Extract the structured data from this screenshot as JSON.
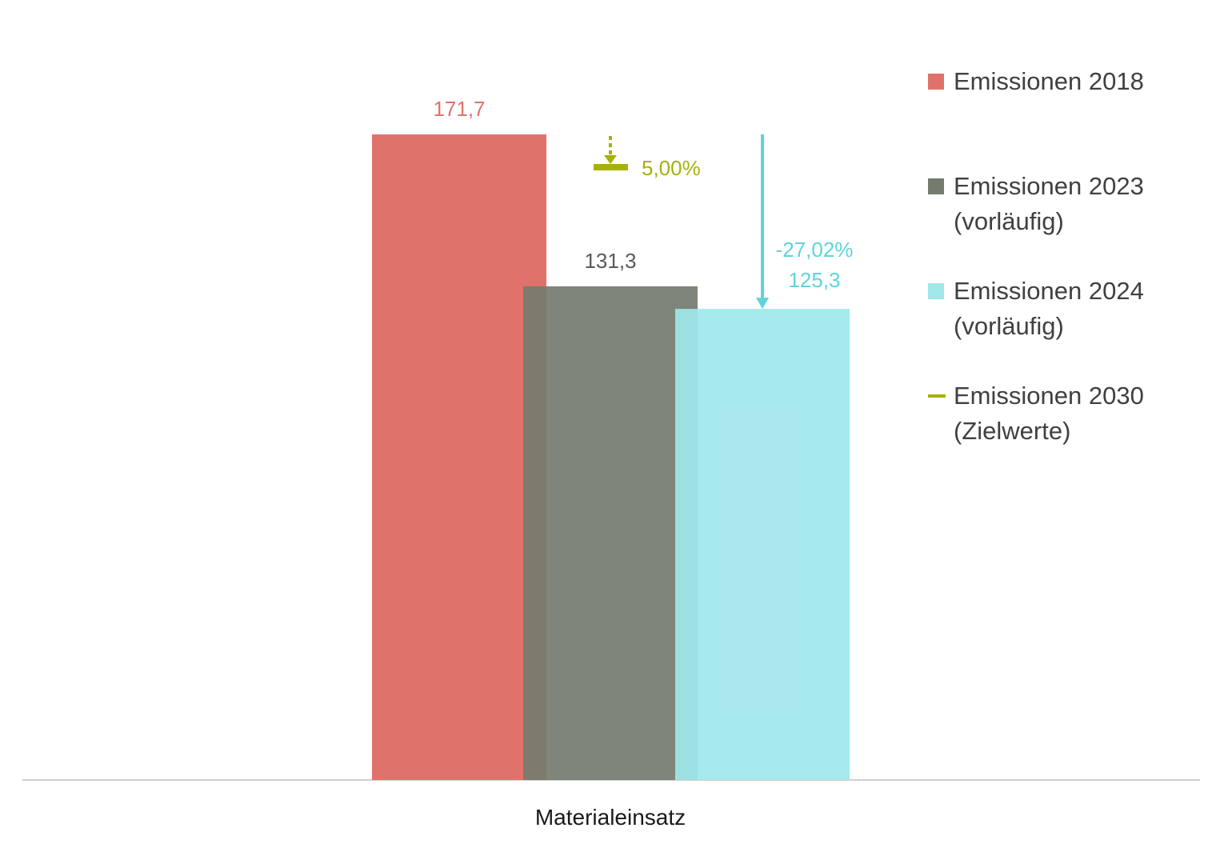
{
  "chart_data": {
    "type": "bar",
    "categories": [
      "Materialeinsatz"
    ],
    "series": [
      {
        "name": "Emissionen 2018",
        "values": [
          171.7
        ],
        "label": "171,7",
        "color": "#e0726c"
      },
      {
        "name": "Emissionen 2023\n(vorläufig)",
        "values": [
          131.3
        ],
        "label": "131,3",
        "color": "#747b6f"
      },
      {
        "name": "Emissionen 2024\n(vorläufig)",
        "values": [
          125.3
        ],
        "label": "125,3",
        "color": "#a0e8ea"
      }
    ],
    "target": {
      "name": "Emissionen 2030\n(Zielwerte)",
      "label": "5,00%",
      "color": "#a6b10a"
    },
    "change_annotation": {
      "label": "-27,02%",
      "color": "#5fd3d9"
    },
    "ylim": [
      0,
      171.7
    ],
    "legend_position": "right"
  }
}
